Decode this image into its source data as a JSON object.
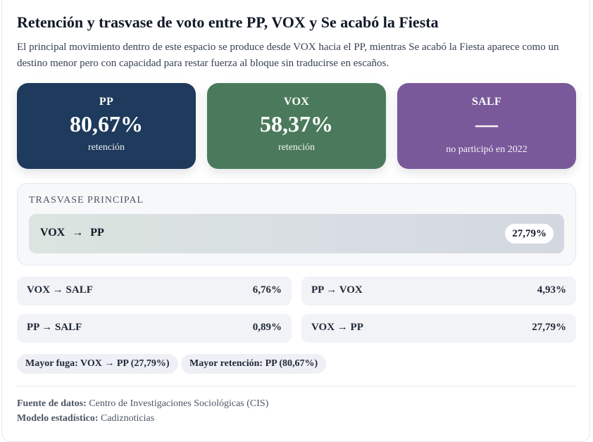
{
  "title": "Retención y trasvase de voto entre PP, VOX y Se acabó la Fiesta",
  "subtitle": "El principal movimiento dentro de este espacio se produce desde VOX hacia el PP, mientras Se acabó la Fiesta aparece como un destino menor pero con capacidad para restar fuerza al bloque sin traducirse en escaños.",
  "kpis": [
    {
      "name": "PP",
      "value": "80,67%",
      "sub": "retención",
      "color": "#1e3a5c"
    },
    {
      "name": "VOX",
      "value": "58,37%",
      "sub": "retención",
      "color": "#4a7a5b"
    },
    {
      "name": "SALF",
      "value": "—",
      "sub": "no participó en 2022",
      "color": "#7a599b"
    }
  ],
  "main_transfer": {
    "label": "Trasvase principal",
    "from": "VOX",
    "arrow": "→",
    "to": "PP",
    "value": "27,79%"
  },
  "flows": [
    {
      "label": "VOX → SALF",
      "value": "6,76%"
    },
    {
      "label": "PP → VOX",
      "value": "4,93%"
    },
    {
      "label": "PP → SALF",
      "value": "0,89%"
    },
    {
      "label": "VOX → PP",
      "value": "27,79%"
    }
  ],
  "chips": [
    "Mayor fuga: VOX → PP (27,79%)",
    "Mayor retención: PP (80,67%)"
  ],
  "footer": {
    "source_label": "Fuente de datos:",
    "source_value": "Centro de Investigaciones Sociológicas (CIS)",
    "model_label": "Modelo estadístico:",
    "model_value": "Cadiznoticias"
  }
}
